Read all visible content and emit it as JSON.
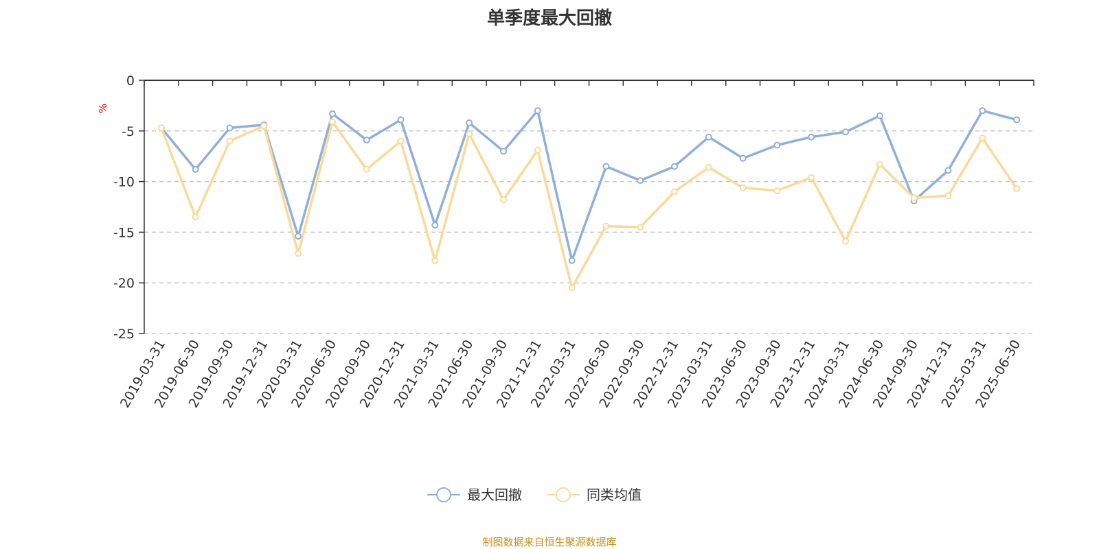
{
  "chart_data": {
    "type": "line",
    "title": "单季度最大回撤",
    "ylabel": "%",
    "xlabel": "",
    "ylim": [
      -25,
      0
    ],
    "yticks": [
      0,
      -5,
      -10,
      -15,
      -20,
      -25
    ],
    "grid": true,
    "legend_position": "bottom",
    "categories": [
      "2019-03-31",
      "2019-06-30",
      "2019-09-30",
      "2019-12-31",
      "2020-03-31",
      "2020-06-30",
      "2020-09-30",
      "2020-12-31",
      "2021-03-31",
      "2021-06-30",
      "2021-09-30",
      "2021-12-31",
      "2022-03-31",
      "2022-06-30",
      "2022-09-30",
      "2022-12-31",
      "2023-03-31",
      "2023-06-30",
      "2023-09-30",
      "2023-12-31",
      "2024-03-31",
      "2024-06-30",
      "2024-09-30",
      "2024-12-31",
      "2025-03-31",
      "2025-06-30"
    ],
    "series": [
      {
        "name": "最大回撤",
        "color": "#8eb0dc",
        "values": [
          -4.7,
          -8.8,
          -4.7,
          -4.4,
          -15.4,
          -3.3,
          -5.9,
          -3.9,
          -14.3,
          -4.2,
          -7.0,
          -3.0,
          -17.8,
          -8.5,
          -9.9,
          -8.5,
          -5.6,
          -7.7,
          -6.4,
          -5.6,
          -5.1,
          -3.5,
          -11.9,
          -8.9,
          -3.0,
          -3.9
        ]
      },
      {
        "name": "同类均值",
        "color": "#fdd998",
        "values": [
          -4.7,
          -13.5,
          -6.0,
          -4.5,
          -17.1,
          -4.1,
          -8.8,
          -6.0,
          -17.8,
          -5.3,
          -11.8,
          -6.9,
          -20.5,
          -14.4,
          -14.5,
          -11.0,
          -8.6,
          -10.6,
          -10.9,
          -9.6,
          -15.9,
          -8.3,
          -11.6,
          -11.4,
          -5.7,
          -10.7
        ]
      }
    ]
  },
  "source": "制图数据来自恒生聚源数据库"
}
